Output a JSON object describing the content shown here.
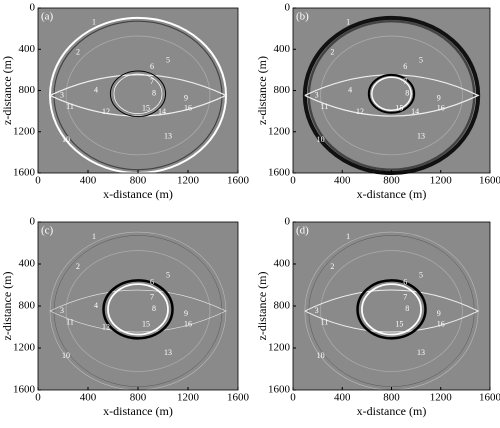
{
  "panels": [
    {
      "label": "(a)",
      "xlabel": "x-distance (m)",
      "ylabel": "z-distance (m)",
      "xlim": [
        0,
        1600
      ],
      "ylim": [
        0,
        1600
      ],
      "yinvert": true,
      "xticks": [
        0,
        400,
        800,
        1200,
        1600
      ],
      "yticks": [
        0,
        400,
        800,
        1200,
        1600
      ],
      "annotations": [
        "1",
        "2",
        "3",
        "4",
        "5",
        "6",
        "7",
        "8",
        "9",
        "10",
        "11",
        "12",
        "13",
        "14",
        "15",
        "16"
      ]
    },
    {
      "label": "(b)",
      "xlabel": "x-distance (m)",
      "ylabel": "z-distance (m)",
      "xlim": [
        0,
        1600
      ],
      "ylim": [
        0,
        1600
      ],
      "yinvert": true,
      "xticks": [
        0,
        400,
        800,
        1200,
        1600
      ],
      "yticks": [
        0,
        400,
        800,
        1200,
        1600
      ],
      "annotations": [
        "1",
        "2",
        "3",
        "4",
        "5",
        "6",
        "7",
        "8",
        "9",
        "10",
        "11",
        "12",
        "13",
        "14",
        "15",
        "16"
      ]
    },
    {
      "label": "(c)",
      "xlabel": "x-distance (m)",
      "ylabel": "z-distance (m)",
      "xlim": [
        0,
        1600
      ],
      "ylim": [
        0,
        1600
      ],
      "yinvert": true,
      "xticks": [
        0,
        400,
        800,
        1200,
        1600
      ],
      "yticks": [
        0,
        400,
        800,
        1200,
        1600
      ],
      "annotations": [
        "1",
        "2",
        "3",
        "4",
        "5",
        "6",
        "7",
        "8",
        "9",
        "10",
        "11",
        "12",
        "13",
        "15",
        "16"
      ]
    },
    {
      "label": "(d)",
      "xlabel": "x-distance (m)",
      "ylabel": "z-distance (m)",
      "xlim": [
        0,
        1600
      ],
      "ylim": [
        0,
        1600
      ],
      "yinvert": true,
      "xticks": [
        0,
        400,
        800,
        1200,
        1600
      ],
      "yticks": [
        0,
        400,
        800,
        1200,
        1600
      ],
      "annotations": [
        "1",
        "2",
        "3",
        "5",
        "6",
        "7",
        "8",
        "9",
        "10",
        "11",
        "13",
        "15",
        "16"
      ]
    }
  ]
}
